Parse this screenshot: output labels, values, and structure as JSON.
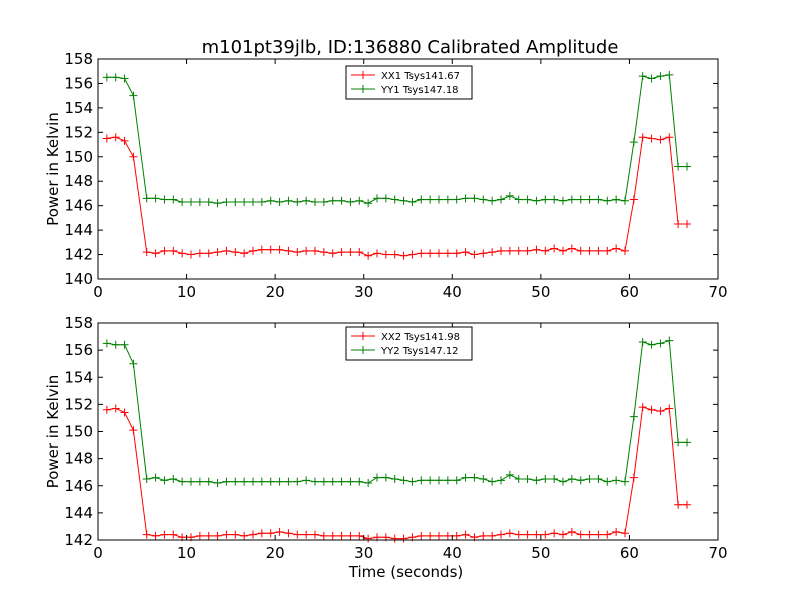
{
  "figure_title": "m101pt39jlb, ID:136880 Calibrated Amplitude",
  "colors": {
    "xx": "#ff0000",
    "yy": "#008000",
    "axis": "#000000",
    "background": "#ffffff"
  },
  "chart_data": [
    {
      "type": "line",
      "title": "m101pt39jlb, ID:136880 Calibrated Amplitude",
      "xlabel": "",
      "ylabel": "Power in Kelvin",
      "xlim": [
        0,
        70
      ],
      "ylim": [
        140,
        158
      ],
      "xticks": [
        "0",
        "10",
        "20",
        "30",
        "40",
        "50",
        "60",
        "70"
      ],
      "yticks": [
        "140",
        "142",
        "144",
        "146",
        "148",
        "150",
        "152",
        "154",
        "156",
        "158"
      ],
      "grid": false,
      "legend": "top-center",
      "x": [
        1.0,
        2.0,
        3.0,
        4.0,
        5.5,
        6.5,
        7.5,
        8.5,
        9.5,
        10.5,
        11.5,
        12.5,
        13.5,
        14.5,
        15.5,
        16.5,
        17.5,
        18.5,
        19.5,
        20.5,
        21.5,
        22.5,
        23.5,
        24.5,
        25.5,
        26.5,
        27.5,
        28.5,
        29.5,
        30.5,
        31.5,
        32.5,
        33.5,
        34.5,
        35.5,
        36.5,
        37.5,
        38.5,
        39.5,
        40.5,
        41.5,
        42.5,
        43.5,
        44.5,
        45.5,
        46.5,
        47.5,
        48.5,
        49.5,
        50.5,
        51.5,
        52.5,
        53.5,
        54.5,
        55.5,
        56.5,
        57.5,
        58.5,
        59.5,
        60.5,
        61.5,
        62.5,
        63.5,
        64.5,
        65.5,
        66.5
      ],
      "series": [
        {
          "name": "XX1 Tsys141.67",
          "color": "#ff0000",
          "values": [
            151.5,
            151.6,
            151.3,
            150.0,
            142.2,
            142.1,
            142.3,
            142.3,
            142.1,
            142.0,
            142.1,
            142.1,
            142.2,
            142.3,
            142.2,
            142.1,
            142.3,
            142.4,
            142.4,
            142.4,
            142.3,
            142.2,
            142.3,
            142.3,
            142.2,
            142.1,
            142.2,
            142.2,
            142.2,
            141.9,
            142.1,
            142.0,
            142.0,
            141.9,
            142.0,
            142.1,
            142.1,
            142.1,
            142.1,
            142.1,
            142.2,
            142.0,
            142.1,
            142.2,
            142.3,
            142.3,
            142.3,
            142.3,
            142.4,
            142.3,
            142.5,
            142.3,
            142.5,
            142.3,
            142.3,
            142.3,
            142.3,
            142.5,
            142.3,
            146.5,
            151.6,
            151.5,
            151.4,
            151.6,
            144.5,
            144.5
          ]
        },
        {
          "name": "YY1 Tsys147.18",
          "color": "#008000",
          "values": [
            156.5,
            156.5,
            156.4,
            155.0,
            146.6,
            146.6,
            146.5,
            146.5,
            146.3,
            146.3,
            146.3,
            146.3,
            146.2,
            146.3,
            146.3,
            146.3,
            146.3,
            146.3,
            146.4,
            146.3,
            146.4,
            146.3,
            146.4,
            146.3,
            146.3,
            146.4,
            146.4,
            146.3,
            146.4,
            146.2,
            146.6,
            146.6,
            146.5,
            146.4,
            146.3,
            146.5,
            146.5,
            146.5,
            146.5,
            146.5,
            146.6,
            146.6,
            146.5,
            146.4,
            146.5,
            146.8,
            146.5,
            146.5,
            146.4,
            146.5,
            146.5,
            146.4,
            146.5,
            146.5,
            146.5,
            146.5,
            146.4,
            146.5,
            146.4,
            151.2,
            156.6,
            156.4,
            156.6,
            156.7,
            149.2,
            149.2
          ]
        }
      ]
    },
    {
      "type": "line",
      "title": "",
      "xlabel": "Time (seconds)",
      "ylabel": "Power in Kelvin",
      "xlim": [
        0,
        70
      ],
      "ylim": [
        142,
        158
      ],
      "xticks": [
        "0",
        "10",
        "20",
        "30",
        "40",
        "50",
        "60",
        "70"
      ],
      "yticks": [
        "142",
        "144",
        "146",
        "148",
        "150",
        "152",
        "154",
        "156",
        "158"
      ],
      "grid": false,
      "legend": "top-center",
      "x": [
        1.0,
        2.0,
        3.0,
        4.0,
        5.5,
        6.5,
        7.5,
        8.5,
        9.5,
        10.5,
        11.5,
        12.5,
        13.5,
        14.5,
        15.5,
        16.5,
        17.5,
        18.5,
        19.5,
        20.5,
        21.5,
        22.5,
        23.5,
        24.5,
        25.5,
        26.5,
        27.5,
        28.5,
        29.5,
        30.5,
        31.5,
        32.5,
        33.5,
        34.5,
        35.5,
        36.5,
        37.5,
        38.5,
        39.5,
        40.5,
        41.5,
        42.5,
        43.5,
        44.5,
        45.5,
        46.5,
        47.5,
        48.5,
        49.5,
        50.5,
        51.5,
        52.5,
        53.5,
        54.5,
        55.5,
        56.5,
        57.5,
        58.5,
        59.5,
        60.5,
        61.5,
        62.5,
        63.5,
        64.5,
        65.5,
        66.5
      ],
      "series": [
        {
          "name": "XX2 Tsys141.98",
          "color": "#ff0000",
          "values": [
            151.6,
            151.7,
            151.4,
            150.1,
            142.4,
            142.3,
            142.4,
            142.4,
            142.2,
            142.2,
            142.3,
            142.3,
            142.3,
            142.4,
            142.4,
            142.3,
            142.4,
            142.5,
            142.5,
            142.6,
            142.5,
            142.4,
            142.4,
            142.4,
            142.3,
            142.3,
            142.3,
            142.3,
            142.3,
            142.1,
            142.2,
            142.2,
            142.1,
            142.1,
            142.2,
            142.3,
            142.3,
            142.3,
            142.3,
            142.3,
            142.4,
            142.2,
            142.3,
            142.3,
            142.4,
            142.5,
            142.4,
            142.4,
            142.4,
            142.4,
            142.5,
            142.4,
            142.6,
            142.4,
            142.4,
            142.4,
            142.4,
            142.6,
            142.5,
            146.6,
            151.8,
            151.6,
            151.5,
            151.7,
            144.6,
            144.6
          ]
        },
        {
          "name": "YY2 Tsys147.12",
          "color": "#008000",
          "values": [
            156.5,
            156.4,
            156.4,
            155.0,
            146.5,
            146.6,
            146.4,
            146.5,
            146.3,
            146.3,
            146.3,
            146.3,
            146.2,
            146.3,
            146.3,
            146.3,
            146.3,
            146.3,
            146.3,
            146.3,
            146.3,
            146.3,
            146.4,
            146.3,
            146.3,
            146.3,
            146.3,
            146.3,
            146.3,
            146.2,
            146.6,
            146.6,
            146.5,
            146.4,
            146.3,
            146.4,
            146.4,
            146.4,
            146.4,
            146.4,
            146.6,
            146.6,
            146.5,
            146.3,
            146.4,
            146.8,
            146.5,
            146.5,
            146.4,
            146.5,
            146.5,
            146.3,
            146.5,
            146.4,
            146.5,
            146.5,
            146.3,
            146.4,
            146.3,
            151.1,
            156.6,
            156.4,
            156.5,
            156.7,
            149.2,
            149.2
          ]
        }
      ]
    }
  ]
}
